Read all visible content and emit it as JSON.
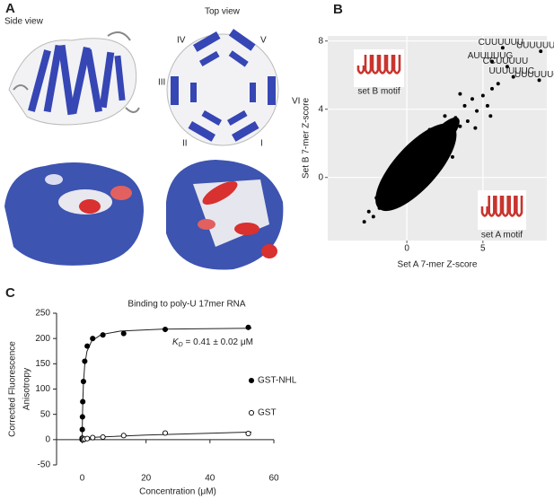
{
  "structure_panel": {
    "label": "A",
    "side_view": "Side view",
    "top_view": "Top view",
    "domain_labels": [
      "IV",
      "V",
      "III",
      "VI",
      "II",
      "I"
    ]
  },
  "chart_data": [
    {
      "type": "scatter",
      "panel_label": "B",
      "x_label": "Set A 7-mer Z-score",
      "y_label": "Set B 7-mer Z-score",
      "xlim": [
        -5.2,
        9.2
      ],
      "ylim": [
        -3.7,
        8.3
      ],
      "xticks": [
        0,
        5
      ],
      "yticks": [
        0,
        4,
        8
      ],
      "grid": true,
      "color": "#000000",
      "x": [
        -2.8,
        -2.5,
        -2.2,
        -2,
        -1.8,
        -1.5,
        -1.3,
        -1,
        -0.8,
        -0.5,
        -0.3,
        0,
        0.2,
        0.4,
        0.6,
        0.8,
        1,
        1.2,
        1.4,
        1.6,
        1.8,
        2,
        2.2,
        2.4,
        2.6,
        2.8,
        3,
        3.2,
        3.5,
        3.8,
        4,
        4.3,
        4.6,
        5,
        5.3,
        5.6,
        6,
        -1.5,
        -0.5,
        0.5,
        1.5,
        2.5,
        3.5,
        1,
        0,
        -1,
        2,
        3,
        4.5,
        5.5
      ],
      "values": [
        -2.6,
        -2,
        -2.3,
        -1.2,
        -1.8,
        -0.8,
        -1.5,
        -0.4,
        -1,
        0.2,
        -0.6,
        0.5,
        -0.2,
        1,
        0.3,
        1.4,
        0.6,
        1.8,
        1,
        2.2,
        1.3,
        2.5,
        1.6,
        2.8,
        2,
        3.2,
        2.3,
        3.5,
        3,
        4.2,
        3.3,
        4.6,
        3.9,
        4.8,
        4.2,
        5.2,
        5.5,
        -0.1,
        0.9,
        1.8,
        2.8,
        3.6,
        4.9,
        -0.2,
        -1,
        -1.6,
        0.5,
        1.2,
        2.9,
        3.6
      ],
      "labeled_points": {
        "x": [
          6.3,
          8.8,
          5.6,
          6.6,
          7,
          8.7
        ],
        "values": [
          7.6,
          7.4,
          6.8,
          6.5,
          5.9,
          5.7
        ],
        "labels": [
          "CUUUUUU",
          "UUUUUUU",
          "AUUUUUG",
          "CCUUUUU",
          "UUUUUUC",
          "UUUUUUG"
        ],
        "label_color": "#c8352e"
      },
      "insets": [
        "set B motif",
        "set A motif"
      ]
    },
    {
      "type": "line",
      "panel_label": "C",
      "title": "Binding to poly-U 17mer RNA",
      "x_label": "Concentration (μM)",
      "y_label": [
        "Corrected Fluorescence",
        "Anisotropy"
      ],
      "xlim": [
        -8,
        60
      ],
      "ylim": [
        -50,
        250
      ],
      "xticks": [
        0,
        20,
        40,
        60
      ],
      "yticks": [
        -50,
        0,
        50,
        100,
        150,
        200,
        250
      ],
      "annotation": {
        "symbol": "K",
        "subscript": "D",
        "text": " = 0.41 ± 0.02 μM"
      },
      "series": [
        {
          "name": "GST-NHL",
          "color": "#000000",
          "filled": true,
          "x": [
            0,
            0.05,
            0.1,
            0.2,
            0.41,
            0.82,
            1.6,
            3.3,
            6.5,
            13,
            26,
            52
          ],
          "values": [
            0,
            20,
            45,
            75,
            115,
            155,
            185,
            200,
            207,
            210,
            218,
            222
          ]
        },
        {
          "name": "GST",
          "color": "#000000",
          "filled": false,
          "x": [
            0,
            0.1,
            0.2,
            0.4,
            0.8,
            1.6,
            3.3,
            6.5,
            13,
            26,
            52
          ],
          "values": [
            3,
            1,
            2,
            0,
            1,
            2,
            4,
            5,
            8,
            13,
            12
          ]
        }
      ],
      "fits": [
        {
          "x": [
            0,
            0.1,
            0.2,
            0.4,
            0.8,
            1.5,
            3,
            6,
            12,
            25,
            53
          ],
          "values": [
            0,
            43.5,
            72.8,
            109.7,
            146.8,
            174.3,
            195.3,
            207.8,
            214.7,
            218.4,
            220.3
          ]
        },
        {
          "x": [
            0,
            1,
            5,
            20,
            53
          ],
          "values": [
            0,
            3,
            5,
            9,
            15
          ]
        }
      ]
    }
  ]
}
